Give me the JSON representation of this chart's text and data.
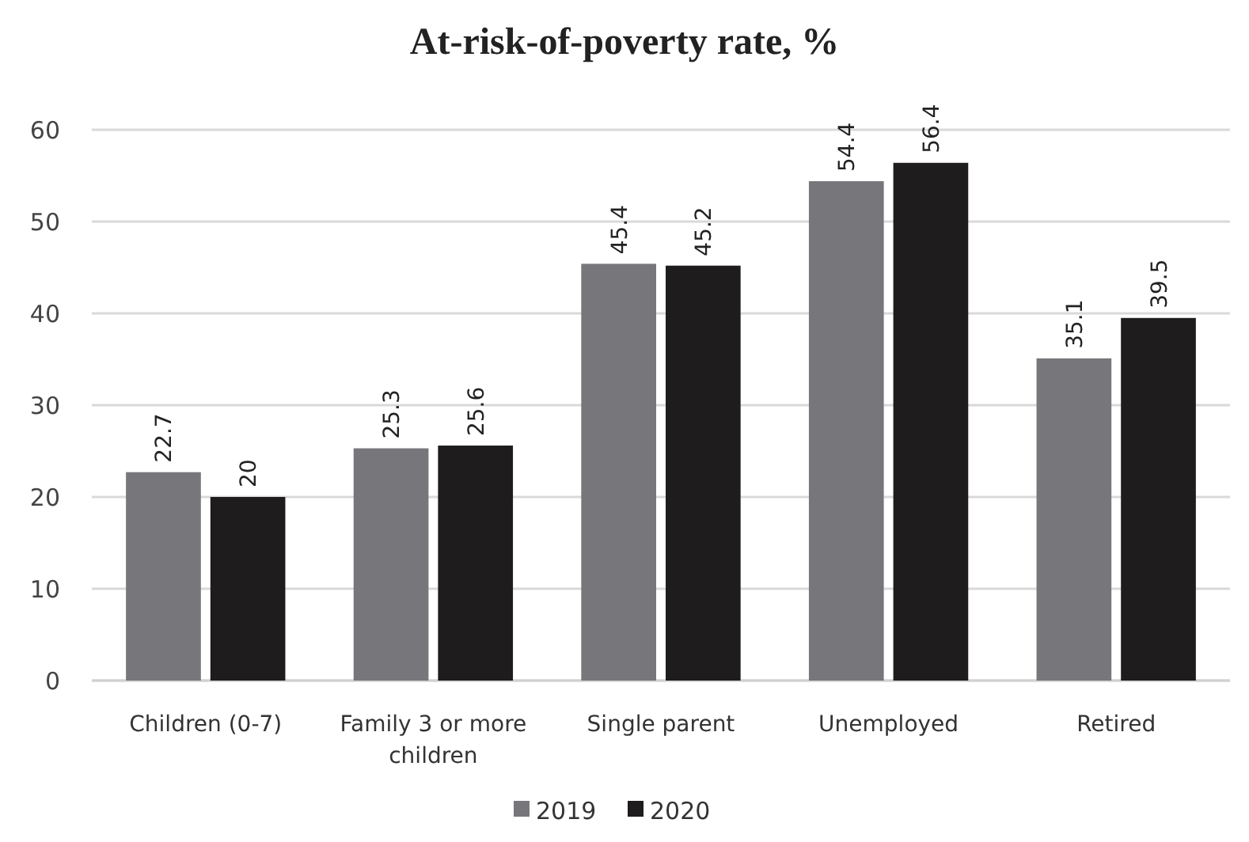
{
  "chart_data": {
    "type": "bar",
    "title": "At-risk-of-poverty rate, %",
    "categories": [
      "Children (0-7)",
      "Family 3 or more children",
      "Single parent",
      "Unemployed",
      "Retired"
    ],
    "series": [
      {
        "name": "2019",
        "color": "#77777b",
        "values": [
          22.7,
          25.3,
          45.4,
          54.4,
          35.1
        ]
      },
      {
        "name": "2020",
        "color": "#1e1c1d",
        "values": [
          20,
          25.6,
          45.2,
          56.4,
          39.5
        ]
      }
    ],
    "ylim": [
      0,
      60
    ],
    "yticks": [
      0,
      10,
      20,
      30,
      40,
      50,
      60
    ],
    "grid": "y",
    "legend": "bottom",
    "data_labels": true
  }
}
